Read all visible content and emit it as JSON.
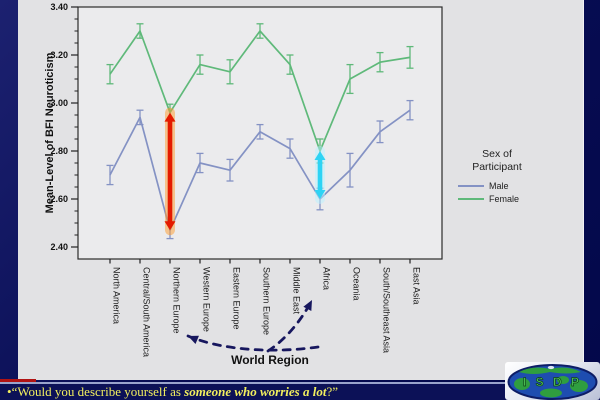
{
  "slide": {
    "caption": {
      "bullet": "•",
      "prefix": "“Would you describe yourself as ",
      "emphasis": "someone who worries a lot",
      "suffix": "?”",
      "text_color": "#f2ef5e",
      "bar_color": "#0c1157",
      "divider_color": "#9aa4cc",
      "red_mark_color": "#b01313"
    },
    "logo": {
      "letters": "I S D P",
      "ocean_color": "#1e4db0",
      "land_color": "#2f9e3f",
      "letter_color": "#54cf5e"
    }
  },
  "chart_data": {
    "type": "line",
    "title": "",
    "ylabel": "Mean-Level of BFI Neuroticism",
    "xlabel": "World Region",
    "ylim": [
      2.35,
      3.4
    ],
    "yticks": [
      2.4,
      2.6,
      2.8,
      3.0,
      3.2,
      3.4
    ],
    "ytick_minor_step": 0.05,
    "grid": "off",
    "error_bars": true,
    "categories": [
      "North America",
      "Central/South America",
      "Northern Europe",
      "Western Europe",
      "Eastern Europe",
      "Southern Europe",
      "Middle East",
      "Africa",
      "Oceania",
      "South/Southeast Asia",
      "East Asia"
    ],
    "series": [
      {
        "name": "Male",
        "color": "#8492c4",
        "values": [
          2.7,
          2.94,
          2.47,
          2.75,
          2.72,
          2.88,
          2.81,
          2.6,
          2.72,
          2.88,
          2.97
        ],
        "errors": [
          0.04,
          0.03,
          0.035,
          0.04,
          0.045,
          0.03,
          0.04,
          0.045,
          0.07,
          0.045,
          0.04
        ]
      },
      {
        "name": "Female",
        "color": "#5fb97a",
        "values": [
          3.12,
          3.3,
          2.96,
          3.16,
          3.13,
          3.3,
          3.16,
          2.8,
          3.1,
          3.17,
          3.19
        ],
        "errors": [
          0.04,
          0.03,
          0.035,
          0.04,
          0.05,
          0.03,
          0.04,
          0.05,
          0.06,
          0.04,
          0.045
        ]
      }
    ],
    "legend": {
      "title": "Sex of Participant",
      "position": "right"
    },
    "annotations": [
      {
        "id": "red-gap-arrow",
        "type": "double-arrow",
        "category": "Northern Europe",
        "from": 2.47,
        "to": 2.96,
        "color": "#e41a00",
        "glow": "#ff9d2e"
      },
      {
        "id": "cyan-gap-arrow",
        "type": "double-arrow",
        "category": "Africa",
        "from": 2.6,
        "to": 2.8,
        "color": "#2ed3f4",
        "glow": "#b9f1ff"
      },
      {
        "id": "dashed-pointer-northern-europe",
        "type": "dashed-arrow",
        "target": "Northern Europe",
        "color": "#17175e"
      },
      {
        "id": "dashed-pointer-africa",
        "type": "dashed-arrow",
        "target": "Africa",
        "color": "#17175e"
      }
    ]
  }
}
